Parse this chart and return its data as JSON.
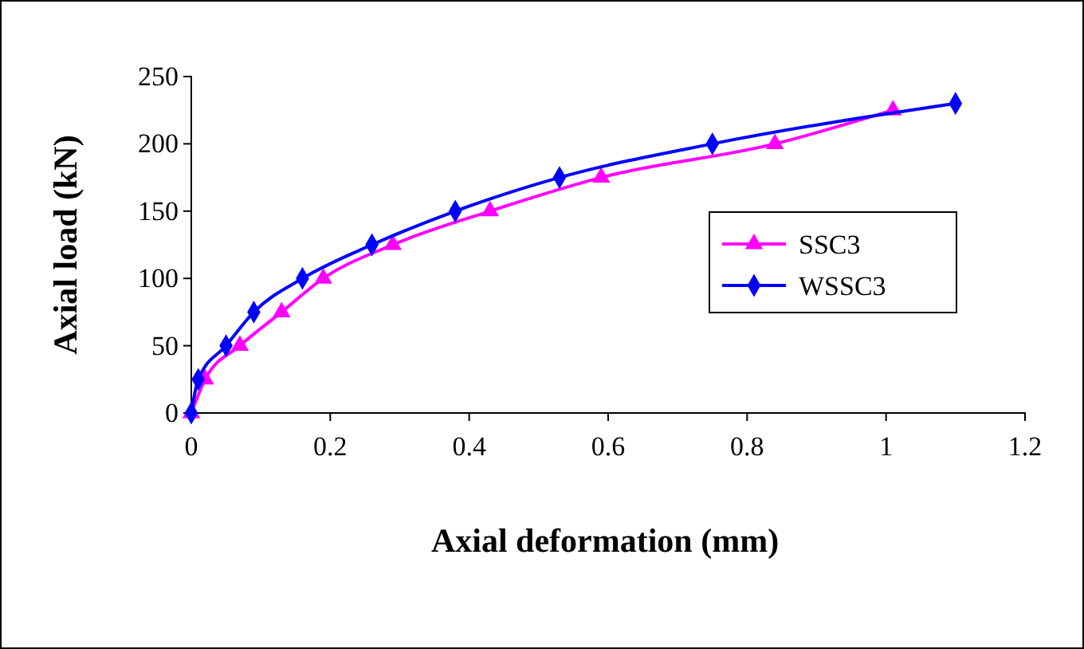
{
  "chart_data": {
    "type": "line",
    "xlabel": "Axial deformation (mm)",
    "ylabel": "Axial load (kN)",
    "xlim": [
      0,
      1.2
    ],
    "xticks": [
      0,
      0.2,
      0.4,
      0.6,
      0.8,
      1,
      1.2
    ],
    "ylim": [
      0,
      250
    ],
    "yticks": [
      0,
      50,
      100,
      150,
      200,
      250
    ],
    "grid": false,
    "legend": "right",
    "line_style": "solid",
    "series": [
      {
        "name": "SSC3",
        "color": "#ff00ff",
        "marker": "triangle",
        "x": [
          0,
          0.02,
          0.07,
          0.13,
          0.19,
          0.29,
          0.43,
          0.59,
          0.84,
          1.01
        ],
        "values": [
          0,
          25,
          50,
          75,
          100,
          125,
          150,
          175,
          200,
          225
        ]
      },
      {
        "name": "WSSC3",
        "color": "#0000ff",
        "marker": "diamond",
        "x": [
          0,
          0.01,
          0.05,
          0.09,
          0.16,
          0.26,
          0.38,
          0.53,
          0.75,
          1.1
        ],
        "values": [
          0,
          25,
          50,
          75,
          100,
          125,
          150,
          175,
          200,
          230
        ]
      }
    ]
  }
}
